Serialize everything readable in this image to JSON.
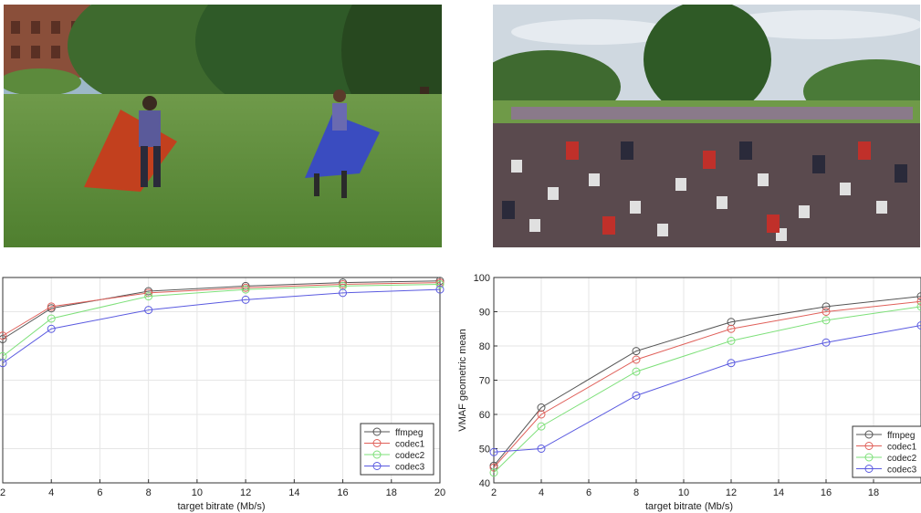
{
  "chart_data": [
    {
      "type": "line",
      "x": [
        2,
        4,
        8,
        12,
        16,
        20
      ],
      "xlabel": "target bitrate (Mb/s)",
      "ylabel": "",
      "xlim": [
        2,
        20
      ],
      "ylim": [
        40,
        100
      ],
      "xticks": [
        2,
        4,
        6,
        8,
        10,
        12,
        14,
        16,
        18,
        20
      ],
      "yticks": [
        40,
        50,
        60,
        70,
        80,
        90,
        100
      ],
      "show_ytick_labels": false,
      "grid": true,
      "legend": "bottom-right",
      "series": [
        {
          "name": "ffmpeg",
          "color": "#555555",
          "values": [
            82,
            91,
            96,
            97.5,
            98.5,
            99
          ]
        },
        {
          "name": "codec1",
          "color": "#e0605a",
          "values": [
            83,
            91.5,
            95.5,
            97,
            98,
            98.5
          ]
        },
        {
          "name": "codec2",
          "color": "#7ee07a",
          "values": [
            77,
            88,
            94.5,
            96.5,
            97.5,
            98
          ]
        },
        {
          "name": "codec3",
          "color": "#5a5ae0",
          "values": [
            75,
            85,
            90.5,
            93.5,
            95.5,
            96.5
          ]
        }
      ]
    },
    {
      "type": "line",
      "x": [
        2,
        4,
        8,
        12,
        16,
        20
      ],
      "xlabel": "target bitrate (Mb/s)",
      "ylabel": "VMAF geometric mean",
      "xlim": [
        2,
        20
      ],
      "ylim": [
        40,
        100
      ],
      "xticks": [
        2,
        4,
        6,
        8,
        10,
        12,
        14,
        16,
        18
      ],
      "yticks": [
        40,
        50,
        60,
        70,
        80,
        90,
        100
      ],
      "show_ytick_labels": true,
      "grid": true,
      "legend": "bottom-right",
      "series": [
        {
          "name": "ffmpeg",
          "color": "#555555",
          "values": [
            45,
            62,
            78.5,
            87,
            91.5,
            94.5
          ]
        },
        {
          "name": "codec1",
          "color": "#e0605a",
          "values": [
            44.5,
            60,
            76,
            85,
            90,
            93
          ]
        },
        {
          "name": "codec2",
          "color": "#7ee07a",
          "values": [
            43,
            56.5,
            72.5,
            81.5,
            87.5,
            91.5
          ]
        },
        {
          "name": "codec3",
          "color": "#5a5ae0",
          "values": [
            49,
            50,
            65.5,
            75,
            81,
            86
          ]
        }
      ]
    }
  ]
}
